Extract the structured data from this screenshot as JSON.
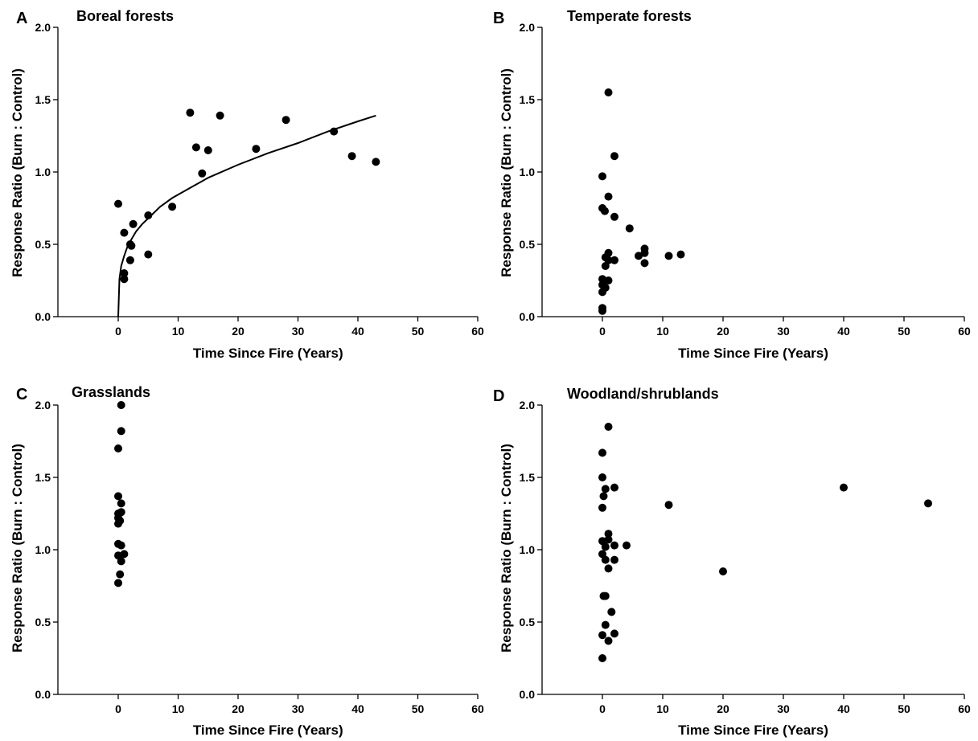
{
  "chart_data": [
    {
      "type": "scatter",
      "panel_label": "A",
      "title": "Boreal forests",
      "xlabel": "Time Since Fire (Years)",
      "ylabel": "Response Ratio (Burn : Control)",
      "xlim": [
        -10,
        60
      ],
      "ylim": [
        0,
        2.0
      ],
      "x_ticks": [
        0,
        10,
        20,
        30,
        40,
        50,
        60
      ],
      "y_ticks": [
        "0.0",
        "0.5",
        "1.0",
        "1.5",
        "2.0"
      ],
      "grid": false,
      "points": [
        [
          0,
          0.78
        ],
        [
          1,
          0.58
        ],
        [
          1,
          0.3
        ],
        [
          1,
          0.26
        ],
        [
          2,
          0.5
        ],
        [
          2.2,
          0.49
        ],
        [
          2,
          0.39
        ],
        [
          2.5,
          0.64
        ],
        [
          5,
          0.7
        ],
        [
          5,
          0.43
        ],
        [
          9,
          0.76
        ],
        [
          12,
          1.41
        ],
        [
          13,
          1.17
        ],
        [
          14,
          0.99
        ],
        [
          15,
          1.15
        ],
        [
          17,
          1.39
        ],
        [
          23,
          1.16
        ],
        [
          28,
          1.36
        ],
        [
          36,
          1.28
        ],
        [
          39,
          1.11
        ],
        [
          43,
          1.07
        ]
      ],
      "fit": {
        "type": "power",
        "x": [
          0,
          0.2,
          0.5,
          1,
          1.5,
          2,
          3,
          4,
          5,
          7,
          9,
          12,
          15,
          20,
          25,
          30,
          35,
          40,
          43
        ],
        "y": [
          0,
          0.26,
          0.35,
          0.42,
          0.48,
          0.52,
          0.59,
          0.64,
          0.68,
          0.76,
          0.82,
          0.89,
          0.96,
          1.05,
          1.13,
          1.2,
          1.28,
          1.35,
          1.39
        ]
      }
    },
    {
      "type": "scatter",
      "panel_label": "B",
      "title": "Temperate forests",
      "xlabel": "Time Since Fire (Years)",
      "ylabel": "Response Ratio (Burn : Control)",
      "xlim": [
        -10,
        60
      ],
      "ylim": [
        0,
        2.0
      ],
      "x_ticks": [
        0,
        10,
        20,
        30,
        40,
        50,
        60
      ],
      "y_ticks": [
        "0.0",
        "0.5",
        "1.0",
        "1.5",
        "2.0"
      ],
      "grid": false,
      "points": [
        [
          1,
          1.55
        ],
        [
          2,
          1.11
        ],
        [
          0,
          0.97
        ],
        [
          1,
          0.83
        ],
        [
          0,
          0.75
        ],
        [
          0.4,
          0.73
        ],
        [
          2,
          0.69
        ],
        [
          4.5,
          0.61
        ],
        [
          7,
          0.47
        ],
        [
          7,
          0.44
        ],
        [
          6,
          0.42
        ],
        [
          11,
          0.42
        ],
        [
          13,
          0.43
        ],
        [
          7,
          0.37
        ],
        [
          2,
          0.39
        ],
        [
          1,
          0.44
        ],
        [
          0.5,
          0.41
        ],
        [
          0.5,
          0.35
        ],
        [
          1,
          0.39
        ],
        [
          0,
          0.26
        ],
        [
          1,
          0.25
        ],
        [
          0,
          0.22
        ],
        [
          0.5,
          0.2
        ],
        [
          0,
          0.17
        ],
        [
          0,
          0.06
        ],
        [
          0,
          0.04
        ]
      ]
    },
    {
      "type": "scatter",
      "panel_label": "C",
      "title": "Grasslands",
      "xlabel": "Time Since Fire (Years)",
      "ylabel": "Response Ratio (Burn : Control)",
      "xlim": [
        -10,
        60
      ],
      "ylim": [
        0,
        2.0
      ],
      "x_ticks": [
        0,
        10,
        20,
        30,
        40,
        50,
        60
      ],
      "y_ticks": [
        "0.0",
        "0.5",
        "1.0",
        "1.5",
        "2.0"
      ],
      "grid": false,
      "points": [
        [
          0.5,
          2.0
        ],
        [
          0.5,
          1.82
        ],
        [
          0,
          1.7
        ],
        [
          0,
          1.37
        ],
        [
          0.5,
          1.32
        ],
        [
          0,
          1.25
        ],
        [
          0.5,
          1.26
        ],
        [
          0,
          1.22
        ],
        [
          0,
          1.18
        ],
        [
          0.3,
          1.2
        ],
        [
          0,
          1.04
        ],
        [
          0.5,
          1.03
        ],
        [
          0,
          0.96
        ],
        [
          1,
          0.97
        ],
        [
          0.5,
          0.92
        ],
        [
          0.3,
          0.83
        ],
        [
          0,
          0.77
        ]
      ]
    },
    {
      "type": "scatter",
      "panel_label": "D",
      "title": "Woodland/shrublands",
      "xlabel": "Time Since Fire (Years)",
      "ylabel": "Response Ratio (Burn : Control)",
      "xlim": [
        -10,
        60
      ],
      "ylim": [
        0,
        2.0
      ],
      "x_ticks": [
        0,
        10,
        20,
        30,
        40,
        50,
        60
      ],
      "y_ticks": [
        "0.0",
        "0.5",
        "1.0",
        "1.5",
        "2.0"
      ],
      "grid": false,
      "points": [
        [
          1,
          1.85
        ],
        [
          0,
          1.67
        ],
        [
          0,
          1.5
        ],
        [
          0.5,
          1.42
        ],
        [
          2,
          1.43
        ],
        [
          0.2,
          1.37
        ],
        [
          0,
          1.29
        ],
        [
          11,
          1.31
        ],
        [
          40,
          1.43
        ],
        [
          54,
          1.32
        ],
        [
          20,
          0.85
        ],
        [
          0,
          1.06
        ],
        [
          1,
          1.11
        ],
        [
          1,
          1.07
        ],
        [
          2,
          1.03
        ],
        [
          4,
          1.03
        ],
        [
          0.5,
          1.02
        ],
        [
          0,
          0.97
        ],
        [
          0.5,
          0.93
        ],
        [
          2,
          0.93
        ],
        [
          1,
          0.87
        ],
        [
          0.5,
          0.68
        ],
        [
          0.2,
          0.68
        ],
        [
          1.5,
          0.57
        ],
        [
          0.5,
          0.48
        ],
        [
          2,
          0.42
        ],
        [
          0,
          0.41
        ],
        [
          1,
          0.37
        ],
        [
          0,
          0.25
        ]
      ]
    }
  ]
}
